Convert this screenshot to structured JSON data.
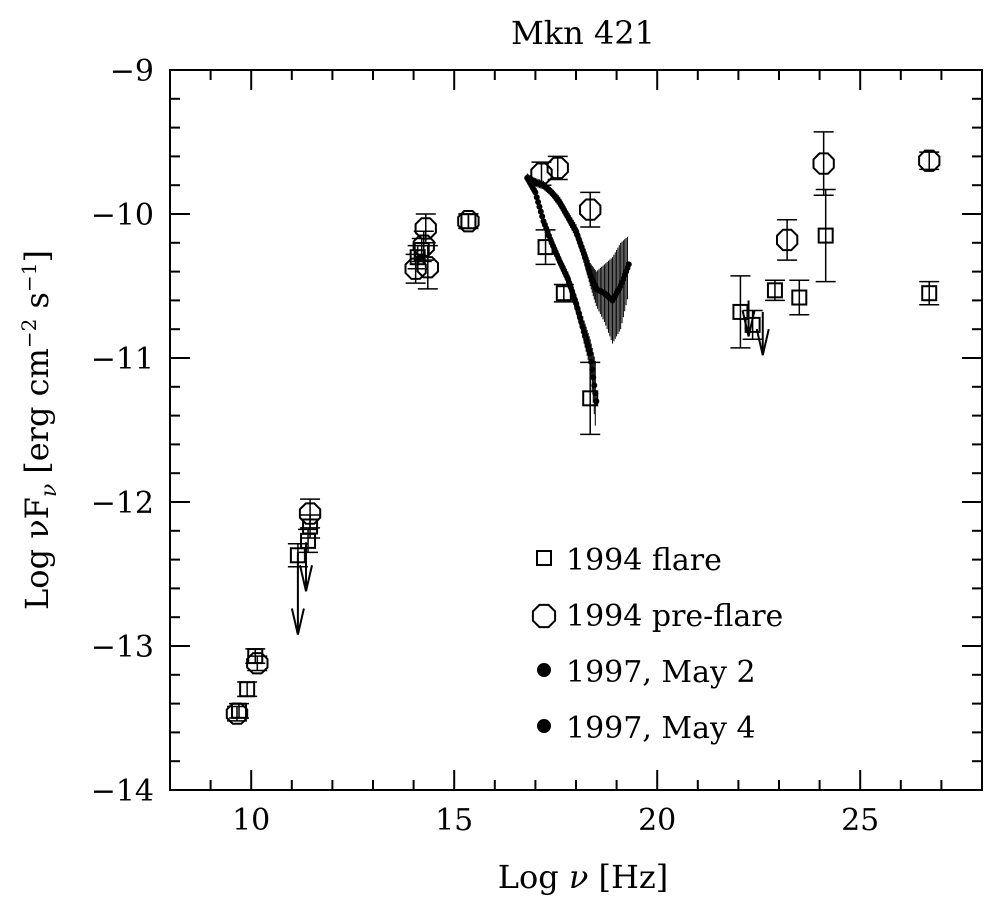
{
  "chart_data": {
    "type": "scatter",
    "title": "Mkn 421",
    "xlabel": {
      "prefix": "Log ",
      "nu": "ν",
      "suffix": " [Hz]"
    },
    "ylabel": {
      "text": "Log νF",
      "sub": "ν",
      "units": "[erg cm",
      "exp1": "−2",
      "s": " s",
      "exp2": "−1",
      "close": "]"
    },
    "xlim": [
      8,
      28
    ],
    "ylim": [
      -14,
      -9
    ],
    "x_ticks": [
      "10",
      "15",
      "20",
      "25"
    ],
    "y_ticks": [
      "−14",
      "−13",
      "−12",
      "−11",
      "−10",
      "−9"
    ],
    "grid": false,
    "legend_position": "lower-right",
    "series": [
      {
        "name": "1994 flare",
        "marker": "open-square",
        "points": [
          {
            "x": 9.7,
            "y": -13.45,
            "err": 0.05
          },
          {
            "x": 9.9,
            "y": -13.3,
            "err": 0.05
          },
          {
            "x": 10.1,
            "y": -13.07,
            "err": 0.05
          },
          {
            "x": 11.15,
            "y": -12.37,
            "err": 0.08
          },
          {
            "x": 11.4,
            "y": -12.27,
            "err": 0.08
          },
          {
            "x": 11.45,
            "y": -12.17,
            "err": 0.08
          },
          {
            "x": 14.1,
            "y": -10.3,
            "err": 0.08
          },
          {
            "x": 14.2,
            "y": -10.25,
            "err": 0.08
          },
          {
            "x": 15.35,
            "y": -10.05,
            "err": 0.05
          },
          {
            "x": 17.25,
            "y": -10.23,
            "err": 0.12
          },
          {
            "x": 17.7,
            "y": -10.55,
            "err": 0.06
          },
          {
            "x": 18.35,
            "y": -11.28,
            "err": 0.25
          },
          {
            "x": 22.05,
            "y": -10.68,
            "err": 0.25
          },
          {
            "x": 22.35,
            "y": -10.77,
            "err": 0.1
          },
          {
            "x": 22.9,
            "y": -10.53,
            "err": 0.07
          },
          {
            "x": 23.5,
            "y": -10.58,
            "err": 0.12
          },
          {
            "x": 24.15,
            "y": -10.15,
            "err": 0.32
          },
          {
            "x": 26.7,
            "y": -10.55,
            "err": 0.08
          }
        ],
        "upper_limits": [
          {
            "x": 11.15,
            "y": -12.35,
            "y_to": -12.92
          },
          {
            "x": 11.35,
            "y": -12.28,
            "y_to": -12.62
          },
          {
            "x": 22.25,
            "y": -10.6,
            "y_to": -10.85
          },
          {
            "x": 22.6,
            "y": -10.68,
            "y_to": -10.98
          }
        ]
      },
      {
        "name": "1994 pre-flare",
        "marker": "open-octagon",
        "points": [
          {
            "x": 9.65,
            "y": -13.47,
            "err": 0.05
          },
          {
            "x": 10.15,
            "y": -13.12,
            "err": 0.05
          },
          {
            "x": 11.45,
            "y": -12.08,
            "err": 0.1
          },
          {
            "x": 14.05,
            "y": -10.38,
            "err": 0.1
          },
          {
            "x": 14.25,
            "y": -10.22,
            "err": 0.1
          },
          {
            "x": 14.3,
            "y": -10.1,
            "err": 0.1
          },
          {
            "x": 14.35,
            "y": -10.37,
            "err": 0.15
          },
          {
            "x": 15.35,
            "y": -10.05,
            "err": 0.05
          },
          {
            "x": 17.15,
            "y": -9.72,
            "err": 0.08
          },
          {
            "x": 17.55,
            "y": -9.68,
            "err": 0.08
          },
          {
            "x": 18.35,
            "y": -9.97,
            "err": 0.12
          },
          {
            "x": 23.2,
            "y": -10.18,
            "err": 0.14
          },
          {
            "x": 24.1,
            "y": -9.65,
            "err": 0.22
          },
          {
            "x": 26.7,
            "y": -9.63,
            "err": 0.06
          }
        ]
      },
      {
        "name": "1997, May 2",
        "marker": "filled-circle",
        "curve": {
          "x": [
            16.8,
            17.0,
            17.2,
            17.4,
            17.6,
            17.8,
            18.0,
            18.2,
            18.35,
            18.5,
            18.7,
            18.9,
            19.1,
            19.3
          ],
          "y": [
            -9.75,
            -9.78,
            -9.8,
            -9.85,
            -9.92,
            -10.02,
            -10.12,
            -10.28,
            -10.42,
            -10.52,
            -10.55,
            -10.6,
            -10.5,
            -10.35
          ],
          "err": [
            0.03,
            0.03,
            0.03,
            0.03,
            0.04,
            0.04,
            0.05,
            0.06,
            0.08,
            0.12,
            0.2,
            0.3,
            0.3,
            0.2
          ]
        }
      },
      {
        "name": "1997, May 4",
        "marker": "filled-circle",
        "curve": {
          "x": [
            16.8,
            17.0,
            17.2,
            17.4,
            17.6,
            17.8,
            18.0,
            18.2,
            18.35,
            18.5
          ],
          "y": [
            -9.75,
            -9.85,
            -10.05,
            -10.2,
            -10.33,
            -10.45,
            -10.62,
            -10.82,
            -10.97,
            -11.3
          ],
          "err": [
            0.03,
            0.03,
            0.03,
            0.04,
            0.04,
            0.05,
            0.06,
            0.08,
            0.1,
            0.25
          ]
        }
      }
    ]
  }
}
